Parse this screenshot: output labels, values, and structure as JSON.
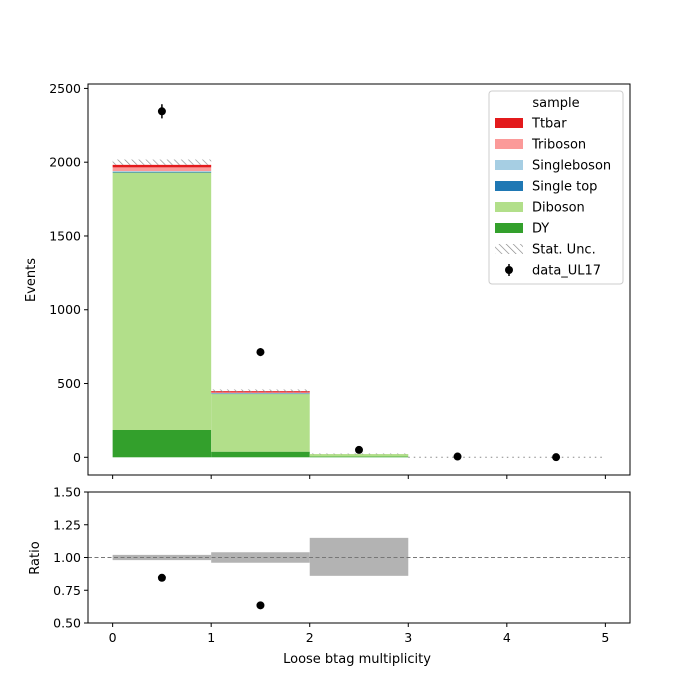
{
  "chart_data": {
    "type": "bar",
    "stacked": true,
    "bins": [
      [
        0,
        1
      ],
      [
        1,
        2
      ],
      [
        2,
        3
      ],
      [
        3,
        4
      ],
      [
        4,
        5
      ]
    ],
    "top_panel": {
      "ylabel": "Events",
      "ylim": [
        -120,
        2530
      ],
      "yticks": [
        0,
        500,
        1000,
        1500,
        2000,
        2500
      ],
      "yticklabels": [
        "0",
        "500",
        "1000",
        "1500",
        "2000",
        "2500"
      ],
      "series": [
        {
          "name": "DY",
          "color": "#33a02c",
          "values": [
            185,
            38,
            5,
            0,
            0
          ]
        },
        {
          "name": "Diboson",
          "color": "#b2df8a",
          "values": [
            1745,
            392,
            17,
            0,
            0
          ]
        },
        {
          "name": "Single top",
          "color": "#1f78b4",
          "values": [
            4,
            2,
            0,
            0,
            0
          ]
        },
        {
          "name": "Singleboson",
          "color": "#a6cee3",
          "values": [
            6,
            3,
            0,
            0,
            0
          ]
        },
        {
          "name": "Triboson",
          "color": "#fb9a99",
          "values": [
            25,
            5,
            0,
            0,
            0
          ]
        },
        {
          "name": "Ttbar",
          "color": "#e31a1c",
          "values": [
            17,
            8,
            0,
            0,
            0
          ]
        }
      ],
      "stat_unc": [
        {
          "bin": [
            0,
            1
          ],
          "low": 1982,
          "high": 2018
        },
        {
          "bin": [
            1,
            2
          ],
          "low": 440,
          "high": 460
        },
        {
          "bin": [
            2,
            3
          ],
          "low": 20,
          "high": 26
        },
        {
          "bin": [
            3,
            4
          ],
          "low": 0,
          "high": 0
        },
        {
          "bin": [
            4,
            5
          ],
          "low": 0,
          "high": 0
        }
      ],
      "data": {
        "name": "data_UL17",
        "x": [
          0.5,
          1.5,
          2.5,
          3.5,
          4.5
        ],
        "y": [
          2345,
          713,
          50,
          5,
          1
        ],
        "yerr": [
          48,
          27,
          7,
          2,
          1
        ]
      },
      "legend": {
        "title": "sample",
        "placement": "top-right",
        "entries": [
          "Ttbar",
          "Triboson",
          "Singleboson",
          "Single top",
          "Diboson",
          "DY",
          "Stat. Unc.",
          "data_UL17"
        ]
      }
    },
    "ratio_panel": {
      "ylabel": "Ratio",
      "ylim": [
        0.5,
        1.5
      ],
      "yticks": [
        0.5,
        0.75,
        1.0,
        1.25,
        1.5
      ],
      "yticklabels": [
        "0.50",
        "0.75",
        "1.00",
        "1.25",
        "1.50"
      ],
      "reference_line": 1.0,
      "unc_bands": [
        {
          "bin": [
            0,
            1
          ],
          "low": 0.98,
          "high": 1.02
        },
        {
          "bin": [
            1,
            2
          ],
          "low": 0.96,
          "high": 1.04
        },
        {
          "bin": [
            2,
            3
          ],
          "low": 0.86,
          "high": 1.15
        }
      ],
      "points": {
        "x": [
          0.5,
          1.5
        ],
        "y": [
          0.845,
          0.635
        ]
      }
    },
    "xlabel": "Loose btag multiplicity",
    "xlim": [
      -0.25,
      5.25
    ],
    "xticks": [
      0,
      1,
      2,
      3,
      4,
      5
    ],
    "xticklabels": [
      "0",
      "1",
      "2",
      "3",
      "4",
      "5"
    ]
  }
}
